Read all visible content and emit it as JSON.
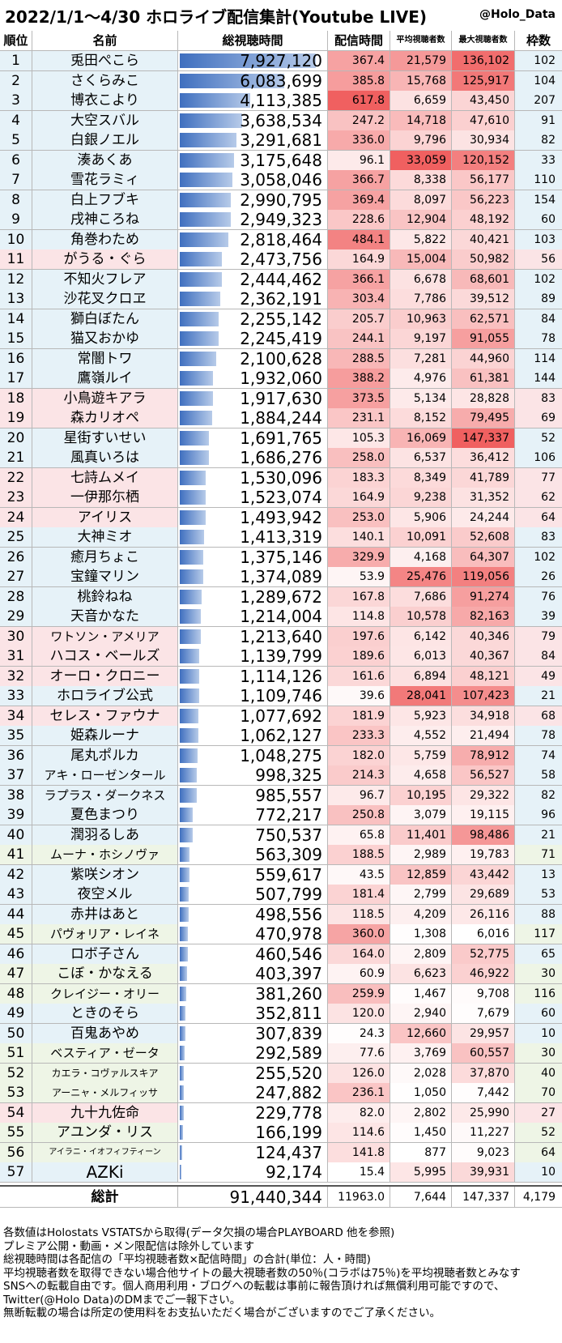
{
  "header": {
    "title": "2022/1/1～4/30 ホロライブ配信集計(Youtube LIVE)",
    "credit": "@Holo_Data"
  },
  "colors": {
    "bar_dark": "#3f6fbf",
    "bar_light": "#b7cbe9",
    "heat": "#f06060",
    "row_blue": "#e6f2f8",
    "row_pink": "#fbe4e6",
    "row_green": "#eef5e6"
  },
  "chart_data": {
    "type": "table",
    "columns": [
      "順位",
      "名前",
      "総視聴時間",
      "配信時間",
      "平均視聴者数",
      "最大視聴者数",
      "枠数"
    ],
    "rows": [
      {
        "rank": "1",
        "name": "兎田ぺこら",
        "total": 7927120,
        "hours": 367.4,
        "avg": 21579,
        "max": 136102,
        "frames": 102,
        "group": "blue"
      },
      {
        "rank": "2",
        "name": "さくらみこ",
        "total": 6083699,
        "hours": 385.8,
        "avg": 15768,
        "max": 125917,
        "frames": 104,
        "group": "blue"
      },
      {
        "rank": "3",
        "name": "博衣こより",
        "total": 4113385,
        "hours": 617.8,
        "avg": 6659,
        "max": 43450,
        "frames": 207,
        "group": "blue"
      },
      {
        "rank": "4",
        "name": "大空スバル",
        "total": 3638534,
        "hours": 247.2,
        "avg": 14718,
        "max": 47610,
        "frames": 91,
        "group": "blue"
      },
      {
        "rank": "5",
        "name": "白銀ノエル",
        "total": 3291681,
        "hours": 336.0,
        "avg": 9796,
        "max": 30934,
        "frames": 82,
        "group": "blue"
      },
      {
        "rank": "6",
        "name": "湊あくあ",
        "total": 3175648,
        "hours": 96.1,
        "avg": 33059,
        "max": 120152,
        "frames": 33,
        "group": "blue"
      },
      {
        "rank": "7",
        "name": "雪花ラミィ",
        "total": 3058046,
        "hours": 366.7,
        "avg": 8338,
        "max": 56177,
        "frames": 110,
        "group": "blue"
      },
      {
        "rank": "8",
        "name": "白上フブキ",
        "total": 2990795,
        "hours": 369.4,
        "avg": 8097,
        "max": 56223,
        "frames": 154,
        "group": "blue"
      },
      {
        "rank": "9",
        "name": "戌神ころね",
        "total": 2949323,
        "hours": 228.6,
        "avg": 12904,
        "max": 48192,
        "frames": 60,
        "group": "blue"
      },
      {
        "rank": "10",
        "name": "角巻わため",
        "total": 2818464,
        "hours": 484.1,
        "avg": 5822,
        "max": 40421,
        "frames": 103,
        "group": "blue"
      },
      {
        "rank": "11",
        "name": "がうる・ぐら",
        "total": 2473756,
        "hours": 164.9,
        "avg": 15004,
        "max": 50982,
        "frames": 56,
        "group": "pink"
      },
      {
        "rank": "12",
        "name": "不知火フレア",
        "total": 2444462,
        "hours": 366.1,
        "avg": 6678,
        "max": 68601,
        "frames": 102,
        "group": "blue"
      },
      {
        "rank": "13",
        "name": "沙花叉クロヱ",
        "total": 2362191,
        "hours": 303.4,
        "avg": 7786,
        "max": 39512,
        "frames": 89,
        "group": "blue"
      },
      {
        "rank": "14",
        "name": "獅白ぼたん",
        "total": 2255142,
        "hours": 205.7,
        "avg": 10963,
        "max": 62571,
        "frames": 84,
        "group": "blue"
      },
      {
        "rank": "15",
        "name": "猫又おかゆ",
        "total": 2245419,
        "hours": 244.1,
        "avg": 9197,
        "max": 91055,
        "frames": 78,
        "group": "blue"
      },
      {
        "rank": "16",
        "name": "常闇トワ",
        "total": 2100628,
        "hours": 288.5,
        "avg": 7281,
        "max": 44960,
        "frames": 114,
        "group": "blue"
      },
      {
        "rank": "17",
        "name": "鷹嶺ルイ",
        "total": 1932060,
        "hours": 388.2,
        "avg": 4976,
        "max": 61381,
        "frames": 144,
        "group": "blue"
      },
      {
        "rank": "18",
        "name": "小鳥遊キアラ",
        "total": 1917630,
        "hours": 373.5,
        "avg": 5134,
        "max": 28828,
        "frames": 83,
        "group": "pink"
      },
      {
        "rank": "19",
        "name": "森カリオペ",
        "total": 1884244,
        "hours": 231.1,
        "avg": 8152,
        "max": 79495,
        "frames": 69,
        "group": "pink"
      },
      {
        "rank": "20",
        "name": "星街すいせい",
        "total": 1691765,
        "hours": 105.3,
        "avg": 16069,
        "max": 147337,
        "frames": 52,
        "group": "blue"
      },
      {
        "rank": "21",
        "name": "風真いろは",
        "total": 1686276,
        "hours": 258.0,
        "avg": 6537,
        "max": 36412,
        "frames": 106,
        "group": "blue"
      },
      {
        "rank": "22",
        "name": "七詩ムメイ",
        "total": 1530096,
        "hours": 183.3,
        "avg": 8349,
        "max": 41789,
        "frames": 77,
        "group": "pink"
      },
      {
        "rank": "23",
        "name": "一伊那尓栖",
        "total": 1523074,
        "hours": 164.9,
        "avg": 9238,
        "max": 31352,
        "frames": 62,
        "group": "pink"
      },
      {
        "rank": "24",
        "name": "アイリス",
        "total": 1493942,
        "hours": 253.0,
        "avg": 5906,
        "max": 24244,
        "frames": 64,
        "group": "pink"
      },
      {
        "rank": "25",
        "name": "大神ミオ",
        "total": 1413319,
        "hours": 140.1,
        "avg": 10091,
        "max": 52608,
        "frames": 83,
        "group": "blue"
      },
      {
        "rank": "26",
        "name": "癒月ちょこ",
        "total": 1375146,
        "hours": 329.9,
        "avg": 4168,
        "max": 64307,
        "frames": 102,
        "group": "blue"
      },
      {
        "rank": "27",
        "name": "宝鐘マリン",
        "total": 1374089,
        "hours": 53.9,
        "avg": 25476,
        "max": 119056,
        "frames": 26,
        "group": "blue"
      },
      {
        "rank": "28",
        "name": "桃鈴ねね",
        "total": 1289672,
        "hours": 167.8,
        "avg": 7686,
        "max": 91274,
        "frames": 76,
        "group": "blue"
      },
      {
        "rank": "29",
        "name": "天音かなた",
        "total": 1214004,
        "hours": 114.8,
        "avg": 10578,
        "max": 82163,
        "frames": 39,
        "group": "blue"
      },
      {
        "rank": "30",
        "name": "ワトソン・アメリア",
        "total": 1213640,
        "hours": 197.6,
        "avg": 6142,
        "max": 40346,
        "frames": 79,
        "group": "pink"
      },
      {
        "rank": "31",
        "name": "ハコス・ベールズ",
        "total": 1139799,
        "hours": 189.6,
        "avg": 6013,
        "max": 40367,
        "frames": 84,
        "group": "pink"
      },
      {
        "rank": "32",
        "name": "オーロ・クロニー",
        "total": 1114126,
        "hours": 161.6,
        "avg": 6894,
        "max": 48121,
        "frames": 49,
        "group": "pink"
      },
      {
        "rank": "33",
        "name": "ホロライブ公式",
        "total": 1109746,
        "hours": 39.6,
        "avg": 28041,
        "max": 107423,
        "frames": 21,
        "group": "blue"
      },
      {
        "rank": "34",
        "name": "セレス・ファウナ",
        "total": 1077692,
        "hours": 181.9,
        "avg": 5923,
        "max": 34918,
        "frames": 68,
        "group": "pink"
      },
      {
        "rank": "35",
        "name": "姫森ルーナ",
        "total": 1062127,
        "hours": 233.3,
        "avg": 4552,
        "max": 21494,
        "frames": 78,
        "group": "blue"
      },
      {
        "rank": "36",
        "name": "尾丸ポルカ",
        "total": 1048275,
        "hours": 182.0,
        "avg": 5759,
        "max": 78912,
        "frames": 74,
        "group": "blue"
      },
      {
        "rank": "37",
        "name": "アキ・ローゼンタール",
        "total": 998325,
        "hours": 214.3,
        "avg": 4658,
        "max": 56527,
        "frames": 58,
        "group": "blue"
      },
      {
        "rank": "38",
        "name": "ラプラス・ダークネス",
        "total": 985557,
        "hours": 96.7,
        "avg": 10195,
        "max": 29322,
        "frames": 82,
        "group": "blue"
      },
      {
        "rank": "39",
        "name": "夏色まつり",
        "total": 772217,
        "hours": 250.8,
        "avg": 3079,
        "max": 19115,
        "frames": 96,
        "group": "blue"
      },
      {
        "rank": "40",
        "name": "潤羽るしあ",
        "total": 750537,
        "hours": 65.8,
        "avg": 11401,
        "max": 98486,
        "frames": 21,
        "group": "blue"
      },
      {
        "rank": "41",
        "name": "ムーナ・ホシノヴァ",
        "total": 563309,
        "hours": 188.5,
        "avg": 2989,
        "max": 19783,
        "frames": 71,
        "group": "green"
      },
      {
        "rank": "42",
        "name": "紫咲シオン",
        "total": 559617,
        "hours": 43.5,
        "avg": 12859,
        "max": 43442,
        "frames": 13,
        "group": "blue"
      },
      {
        "rank": "43",
        "name": "夜空メル",
        "total": 507799,
        "hours": 181.4,
        "avg": 2799,
        "max": 29689,
        "frames": 53,
        "group": "blue"
      },
      {
        "rank": "44",
        "name": "赤井はあと",
        "total": 498556,
        "hours": 118.5,
        "avg": 4209,
        "max": 26116,
        "frames": 88,
        "group": "blue"
      },
      {
        "rank": "45",
        "name": "パヴォリア・レイネ",
        "total": 470978,
        "hours": 360.0,
        "avg": 1308,
        "max": 6016,
        "frames": 117,
        "group": "green"
      },
      {
        "rank": "46",
        "name": "ロボ子さん",
        "total": 460546,
        "hours": 164.0,
        "avg": 2809,
        "max": 52775,
        "frames": 65,
        "group": "blue"
      },
      {
        "rank": "47",
        "name": "こぼ・かなえる",
        "total": 403397,
        "hours": 60.9,
        "avg": 6623,
        "max": 46922,
        "frames": 30,
        "group": "green"
      },
      {
        "rank": "48",
        "name": "クレイジー・オリー",
        "total": 381260,
        "hours": 259.9,
        "avg": 1467,
        "max": 9708,
        "frames": 116,
        "group": "green"
      },
      {
        "rank": "49",
        "name": "ときのそら",
        "total": 352811,
        "hours": 120.0,
        "avg": 2940,
        "max": 7679,
        "frames": 60,
        "group": "blue"
      },
      {
        "rank": "50",
        "name": "百鬼あやめ",
        "total": 307839,
        "hours": 24.3,
        "avg": 12660,
        "max": 29957,
        "frames": 10,
        "group": "blue"
      },
      {
        "rank": "51",
        "name": "ベスティア・ゼータ",
        "total": 292589,
        "hours": 77.6,
        "avg": 3769,
        "max": 60557,
        "frames": 30,
        "group": "green"
      },
      {
        "rank": "52",
        "name": "カエラ・コヴァルスキア",
        "total": 255520,
        "hours": 126.0,
        "avg": 2028,
        "max": 37870,
        "frames": 40,
        "group": "green"
      },
      {
        "rank": "53",
        "name": "アーニャ・メルフィッサ",
        "total": 247882,
        "hours": 236.1,
        "avg": 1050,
        "max": 7442,
        "frames": 70,
        "group": "green"
      },
      {
        "rank": "54",
        "name": "九十九佐命",
        "total": 229778,
        "hours": 82.0,
        "avg": 2802,
        "max": 25990,
        "frames": 27,
        "group": "pink"
      },
      {
        "rank": "55",
        "name": "アユンダ・リス",
        "total": 166199,
        "hours": 114.6,
        "avg": 1450,
        "max": 11227,
        "frames": 52,
        "group": "green"
      },
      {
        "rank": "56",
        "name": "アイラニ・イオフィフティーン",
        "total": 124437,
        "hours": 141.8,
        "avg": 877,
        "max": 9023,
        "frames": 64,
        "group": "green"
      },
      {
        "rank": "57",
        "name": "AZKi",
        "total": 92174,
        "hours": 15.4,
        "avg": 5995,
        "max": 39931,
        "frames": 10,
        "group": "blue"
      }
    ],
    "summary": {
      "label": "総計",
      "total": 91440344,
      "hours": 11963.0,
      "avg": 7644,
      "max": 147337,
      "frames": 4179
    }
  },
  "notes": [
    "各数値はHolostats VSTATSから取得(データ欠損の場合PLAYBOARD 他を参照)",
    "プレミア公開・動画・メン限配信は除外しています",
    "総視聴時間は各配信の「平均視聴者数×配信時間」の合計(単位：人・時間)",
    "平均視聴者数を取得できない場合他サイトの最大視聴者数の50％(コラボは75％)を平均視聴者数とみなす",
    "SNSへの転載自由です。個人商用利用・ブログへの転載は事前に報告頂ければ無償利用可能ですので、",
    "Twitter(@Holo Data)のDMまでご一報下さい。",
    "無断転載の場合は所定の使用料をお支払いただく場合がございますのでご了承ください。"
  ]
}
